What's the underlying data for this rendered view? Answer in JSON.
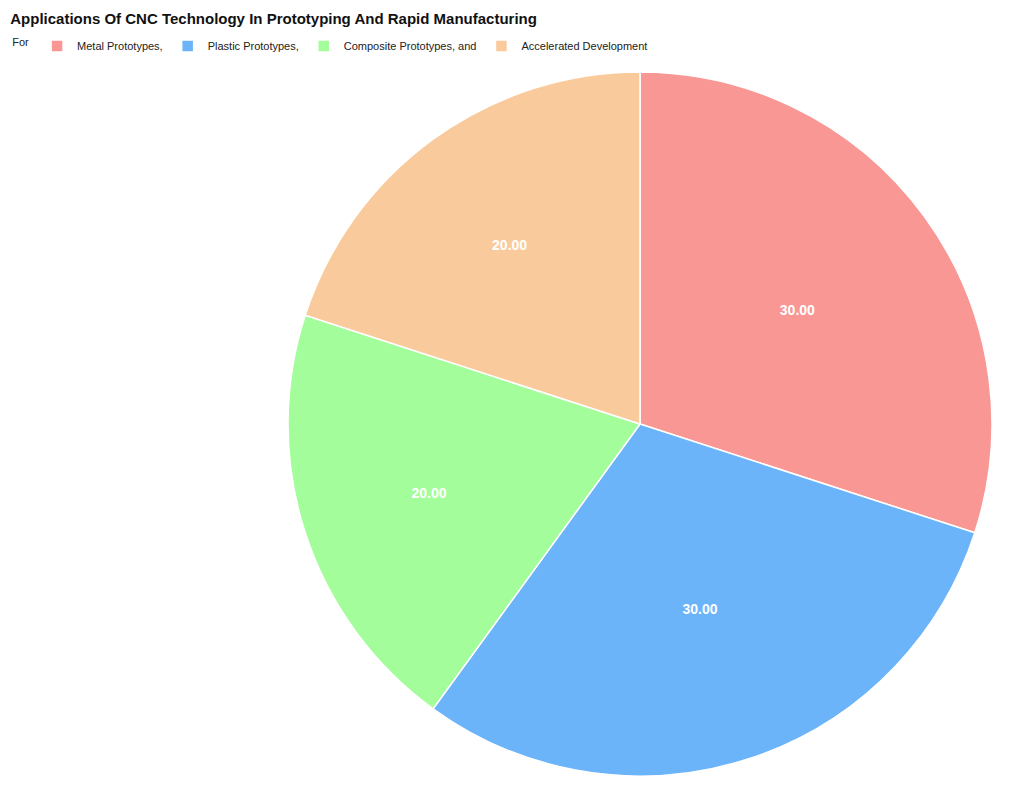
{
  "chart_data": {
    "type": "pie",
    "title": "Applications Of CNC Technology In Prototyping And Rapid Manufacturing",
    "legend_title": "For",
    "categories": [
      "Metal Prototypes,",
      "Plastic Prototypes,",
      "Composite Prototypes, and",
      "Accelerated Development"
    ],
    "values": [
      30,
      30,
      20,
      20
    ],
    "value_labels": [
      "30.00",
      "30.00",
      "20.00",
      "20.00"
    ],
    "colors": [
      "#f99795",
      "#6cb4fa",
      "#a3fd9b",
      "#f9cb9c"
    ],
    "data_labels": true,
    "legend": "top-left"
  }
}
